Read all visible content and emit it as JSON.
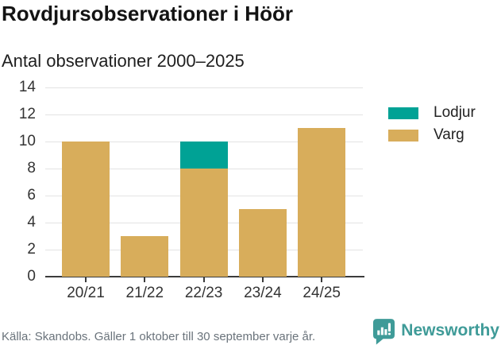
{
  "title": "Rovdjursobservationer i Höör",
  "subtitle": "Antal observationer 2000–2025",
  "source": "Källa: Skandobs. Gäller 1 oktober till 30 september varje år.",
  "brand": {
    "name": "Newsworthy"
  },
  "colors": {
    "varg": "#d8ad5b",
    "lodjur": "#00a295",
    "grid": "#e3e3e3",
    "axis": "#3b3b3b",
    "tick_text": "#333333",
    "muted_text": "#6a737b",
    "brand_teal": "#3f9b98"
  },
  "legend": [
    {
      "label": "Lodjur",
      "color": "#00a295"
    },
    {
      "label": "Varg",
      "color": "#d8ad5b"
    }
  ],
  "chart_data": {
    "type": "bar",
    "stacked": true,
    "categories": [
      "20/21",
      "21/22",
      "22/23",
      "23/24",
      "24/25"
    ],
    "series": [
      {
        "name": "Varg",
        "color": "#d8ad5b",
        "values": [
          10,
          3,
          8,
          5,
          11
        ]
      },
      {
        "name": "Lodjur",
        "color": "#00a295",
        "values": [
          0,
          0,
          2,
          0,
          0
        ]
      }
    ],
    "title": "Rovdjursobservationer i Höör",
    "subtitle": "Antal observationer 2000–2025",
    "xlabel": "",
    "ylabel": "",
    "ylim": [
      0,
      14
    ],
    "yticks": [
      0,
      2,
      4,
      6,
      8,
      10,
      12,
      14
    ],
    "grid": "horizontal",
    "legend_position": "right"
  }
}
